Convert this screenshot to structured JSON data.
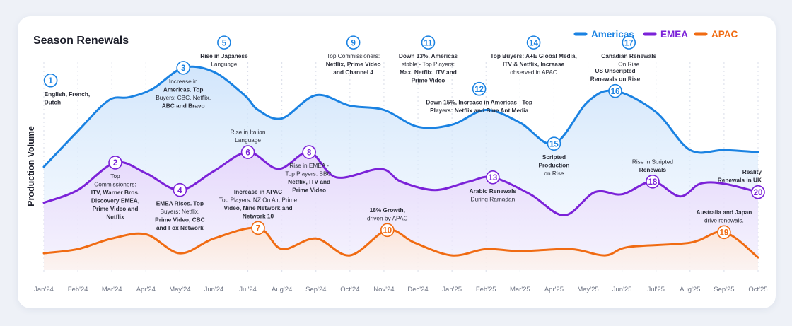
{
  "chart_data": {
    "type": "line",
    "title": "Season Renewals",
    "ylabel": "Production Volume",
    "xlabel": "",
    "ylim": [
      0,
      100
    ],
    "grid": true,
    "legend_position": "top-right",
    "categories": [
      "Jan'24",
      "Feb'24",
      "Mar'24",
      "Apr'24",
      "May'24",
      "Jun'24",
      "Jul'24",
      "Aug'24",
      "Sep'24",
      "Oct'24",
      "Nov'24",
      "Dec'24",
      "Jan'25",
      "Feb'25",
      "Mar'25",
      "Apr'25",
      "May'25",
      "Jun'25",
      "Jul'25",
      "Aug'25",
      "Sep'25",
      "Oct'25"
    ],
    "series": [
      {
        "name": "Americas",
        "color": "#1a82e2",
        "values": [
          [
            0,
            47
          ],
          [
            1,
            64
          ],
          [
            1.9,
            78.5
          ],
          [
            2.5,
            80
          ],
          [
            3.2,
            84
          ],
          [
            4.1,
            94
          ],
          [
            5,
            92
          ],
          [
            5.9,
            81
          ],
          [
            6.3,
            74
          ],
          [
            7,
            70
          ],
          [
            8,
            81
          ],
          [
            9,
            76
          ],
          [
            10,
            74
          ],
          [
            11,
            66
          ],
          [
            12,
            67
          ],
          [
            13,
            74
          ],
          [
            14,
            68
          ],
          [
            15,
            58
          ],
          [
            16,
            78
          ],
          [
            16.8,
            83
          ],
          [
            18,
            73
          ],
          [
            19,
            55
          ],
          [
            20,
            55
          ],
          [
            21,
            54
          ]
        ]
      },
      {
        "name": "EMEA",
        "color": "#7b22d8",
        "values": [
          [
            0,
            30
          ],
          [
            1,
            36
          ],
          [
            2.1,
            49
          ],
          [
            3,
            44
          ],
          [
            4,
            36
          ],
          [
            5,
            45
          ],
          [
            6,
            54
          ],
          [
            6.9,
            46
          ],
          [
            7.8,
            54
          ],
          [
            8.6,
            42
          ],
          [
            9.9,
            46
          ],
          [
            10.5,
            40
          ],
          [
            11.5,
            36
          ],
          [
            12.5,
            40
          ],
          [
            13.2,
            42
          ],
          [
            14.3,
            34
          ],
          [
            15.3,
            24
          ],
          [
            16.2,
            35
          ],
          [
            17,
            34
          ],
          [
            17.9,
            40
          ],
          [
            18.7,
            33
          ],
          [
            19.3,
            39
          ],
          [
            20,
            39
          ],
          [
            21,
            35
          ]
        ]
      },
      {
        "name": "APAC",
        "color": "#f06b12",
        "values": [
          [
            0,
            6
          ],
          [
            1,
            8
          ],
          [
            2,
            13
          ],
          [
            3,
            15
          ],
          [
            4,
            6
          ],
          [
            5,
            13
          ],
          [
            6.3,
            18
          ],
          [
            7,
            8
          ],
          [
            8,
            13
          ],
          [
            9,
            5
          ],
          [
            10.1,
            17
          ],
          [
            10.9,
            11
          ],
          [
            12,
            5
          ],
          [
            13,
            8
          ],
          [
            14,
            7
          ],
          [
            15.5,
            8
          ],
          [
            16.5,
            5
          ],
          [
            17.2,
            9
          ],
          [
            19,
            11
          ],
          [
            20,
            16
          ],
          [
            21,
            4
          ]
        ]
      }
    ],
    "annotations": [
      {
        "num": "1",
        "series": "none",
        "x": 0.2,
        "y": 88,
        "color": "#1a82e2",
        "lines": [
          "English, French,",
          "Dutch"
        ],
        "bold_lines": [
          0,
          1
        ],
        "text_pos": "below-right"
      },
      {
        "num": "2",
        "series": "EMEA",
        "x": 2.1,
        "y": 49,
        "color": "#7b22d8",
        "lines": [
          "Top",
          "Commissioners:",
          "ITV, Warner Bros.",
          "Discovery EMEA,",
          "Prime Video and",
          "Netflix"
        ],
        "bold_lines": [
          2,
          3,
          4,
          5
        ],
        "text_pos": "below"
      },
      {
        "num": "3",
        "series": "Americas",
        "x": 4.1,
        "y": 94,
        "color": "#1a82e2",
        "lines": [
          "Increase in",
          "Americas. Top",
          "Buyers: CBC, Netflix,",
          "ABC and Bravo"
        ],
        "bold_lines": [
          1,
          3
        ],
        "text_pos": "below"
      },
      {
        "num": "4",
        "series": "EMEA",
        "x": 4,
        "y": 36,
        "color": "#7b22d8",
        "lines": [
          "EMEA Rises. Top",
          "Buyers: Netflix,",
          "Prime Video, CBC",
          "and Fox Network"
        ],
        "bold_lines": [
          0,
          2,
          3
        ],
        "text_pos": "below"
      },
      {
        "num": "5",
        "series": "none",
        "x": 5.3,
        "y": 106,
        "color": "#1a82e2",
        "lines": [
          "Rise in Japanese",
          "Language"
        ],
        "bold_lines": [
          0
        ],
        "text_pos": "below"
      },
      {
        "num": "6",
        "series": "EMEA",
        "x": 6,
        "y": 54,
        "color": "#7b22d8",
        "lines": [
          "Rise in Italian",
          "Language"
        ],
        "bold_lines": [],
        "text_pos": "above"
      },
      {
        "num": "7",
        "series": "APAC",
        "x": 6.3,
        "y": 18,
        "color": "#f06b12",
        "lines": [
          "Increase in APAC",
          "Top Players: NZ On Air, Prime",
          "Video, Nine Network and",
          "Network 10"
        ],
        "bold_lines": [
          0,
          2,
          3
        ],
        "text_pos": "above"
      },
      {
        "num": "8",
        "series": "EMEA",
        "x": 7.8,
        "y": 54,
        "color": "#7b22d8",
        "lines": [
          "Rise in EMEA -",
          "Top Players: BBC,",
          "Netflix, ITV and",
          "Prime Video"
        ],
        "bold_lines": [
          2,
          3
        ],
        "text_pos": "below"
      },
      {
        "num": "9",
        "series": "none",
        "x": 9.1,
        "y": 106,
        "color": "#1a82e2",
        "lines": [
          "Top Commissioners:",
          "Netflix, Prime Video",
          "and Channel 4"
        ],
        "bold_lines": [
          1,
          2
        ],
        "text_pos": "below"
      },
      {
        "num": "10",
        "series": "APAC",
        "x": 10.1,
        "y": 17,
        "color": "#f06b12",
        "lines": [
          "18% Growth,",
          "driven by APAC"
        ],
        "bold_lines": [
          0
        ],
        "text_pos": "above"
      },
      {
        "num": "11",
        "series": "none",
        "x": 11.3,
        "y": 106,
        "color": "#1a82e2",
        "lines": [
          "Down 13%, Americas",
          "stable - Top Players:",
          "Max, Netflix, ITV and",
          "Prime Video"
        ],
        "bold_lines": [
          0,
          2,
          3
        ],
        "text_pos": "below"
      },
      {
        "num": "12",
        "series": "none",
        "x": 12.8,
        "y": 84,
        "color": "#1a82e2",
        "lines": [
          "Down 15%, Increase in Americas - Top",
          "Players: Netflix and Blue Ant Media"
        ],
        "bold_lines": [
          0,
          1
        ],
        "text_pos": "below"
      },
      {
        "num": "13",
        "series": "EMEA",
        "x": 13.2,
        "y": 42,
        "color": "#7b22d8",
        "lines": [
          "Arabic Renewals",
          "During Ramadan"
        ],
        "bold_lines": [
          0
        ],
        "text_pos": "below"
      },
      {
        "num": "14",
        "series": "none",
        "x": 14.4,
        "y": 106,
        "color": "#1a82e2",
        "lines": [
          "Top Buyers: A+E Global Media,",
          "ITV & Netflix, Increase",
          "observed in APAC"
        ],
        "bold_lines": [
          0,
          1
        ],
        "text_pos": "below"
      },
      {
        "num": "15",
        "series": "Americas",
        "x": 15,
        "y": 58,
        "color": "#1a82e2",
        "lines": [
          "Scripted",
          "Production",
          "on Rise"
        ],
        "bold_lines": [
          0,
          1
        ],
        "text_pos": "below"
      },
      {
        "num": "16",
        "series": "Americas",
        "x": 16.8,
        "y": 83,
        "color": "#1a82e2",
        "lines": [
          "US Unscripted",
          "Renewals on Rise"
        ],
        "bold_lines": [
          0,
          1
        ],
        "text_pos": "above"
      },
      {
        "num": "17",
        "series": "none",
        "x": 17.2,
        "y": 106,
        "color": "#1a82e2",
        "lines": [
          "Canadian Renewals",
          "On Rise"
        ],
        "bold_lines": [
          0
        ],
        "text_pos": "below"
      },
      {
        "num": "18",
        "series": "EMEA",
        "x": 17.9,
        "y": 40,
        "color": "#7b22d8",
        "lines": [
          "Rise in Scripted",
          "Renewals"
        ],
        "bold_lines": [
          1
        ],
        "text_pos": "above"
      },
      {
        "num": "19",
        "series": "APAC",
        "x": 20,
        "y": 16,
        "color": "#f06b12",
        "lines": [
          "Australia and Japan",
          "drive renewals."
        ],
        "bold_lines": [
          0
        ],
        "text_pos": "above"
      },
      {
        "num": "20",
        "series": "EMEA",
        "x": 21,
        "y": 35,
        "color": "#7b22d8",
        "lines": [
          "Reality",
          "Renewals in UK"
        ],
        "bold_lines": [
          0,
          1
        ],
        "text_pos": "above-left"
      }
    ]
  }
}
